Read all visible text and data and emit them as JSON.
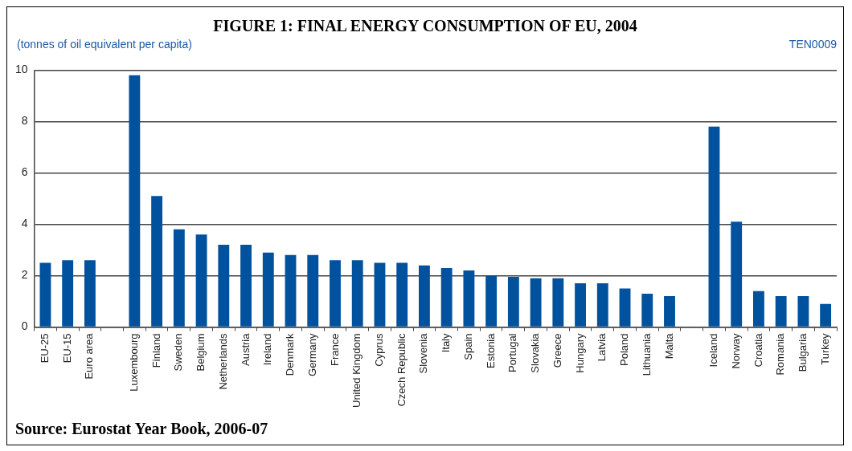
{
  "chart_data": {
    "type": "bar",
    "title": "FIGURE 1: FINAL ENERGY CONSUMPTION OF EU, 2004",
    "ylabel": "(tonnes of oil equivalent per capita)",
    "annotations": [
      "TEN0009",
      "Source: Eurostat Year Book, 2006-07"
    ],
    "categories": [
      "EU-25",
      "EU-15",
      "Euro area",
      null,
      "Luxembourg",
      "Finland",
      "Sweden",
      "Belgium",
      "Netherlands",
      "Austria",
      "Ireland",
      "Denmark",
      "Germany",
      "France",
      "United Kingdom",
      "Cyprus",
      "Czech Republic",
      "Slovenia",
      "Italy",
      "Spain",
      "Estonia",
      "Portugal",
      "Slovakia",
      "Greece",
      "Hungary",
      "Latvia",
      "Poland",
      "Lithuania",
      "Malta",
      null,
      "Iceland",
      "Norway",
      "Croatia",
      "Romania",
      "Bulgaria",
      "Turkey"
    ],
    "values": [
      2.5,
      2.6,
      2.6,
      null,
      9.8,
      5.1,
      3.8,
      3.6,
      3.2,
      3.2,
      2.9,
      2.8,
      2.8,
      2.6,
      2.6,
      2.5,
      2.5,
      2.4,
      2.3,
      2.2,
      2.0,
      1.95,
      1.9,
      1.9,
      1.7,
      1.7,
      1.5,
      1.3,
      1.2,
      null,
      7.8,
      4.1,
      1.4,
      1.2,
      1.2,
      0.9
    ],
    "color": "#00529f",
    "ylim": [
      0,
      10
    ],
    "yticks": [
      0,
      2,
      4,
      6,
      8,
      10
    ],
    "grid": "y"
  }
}
